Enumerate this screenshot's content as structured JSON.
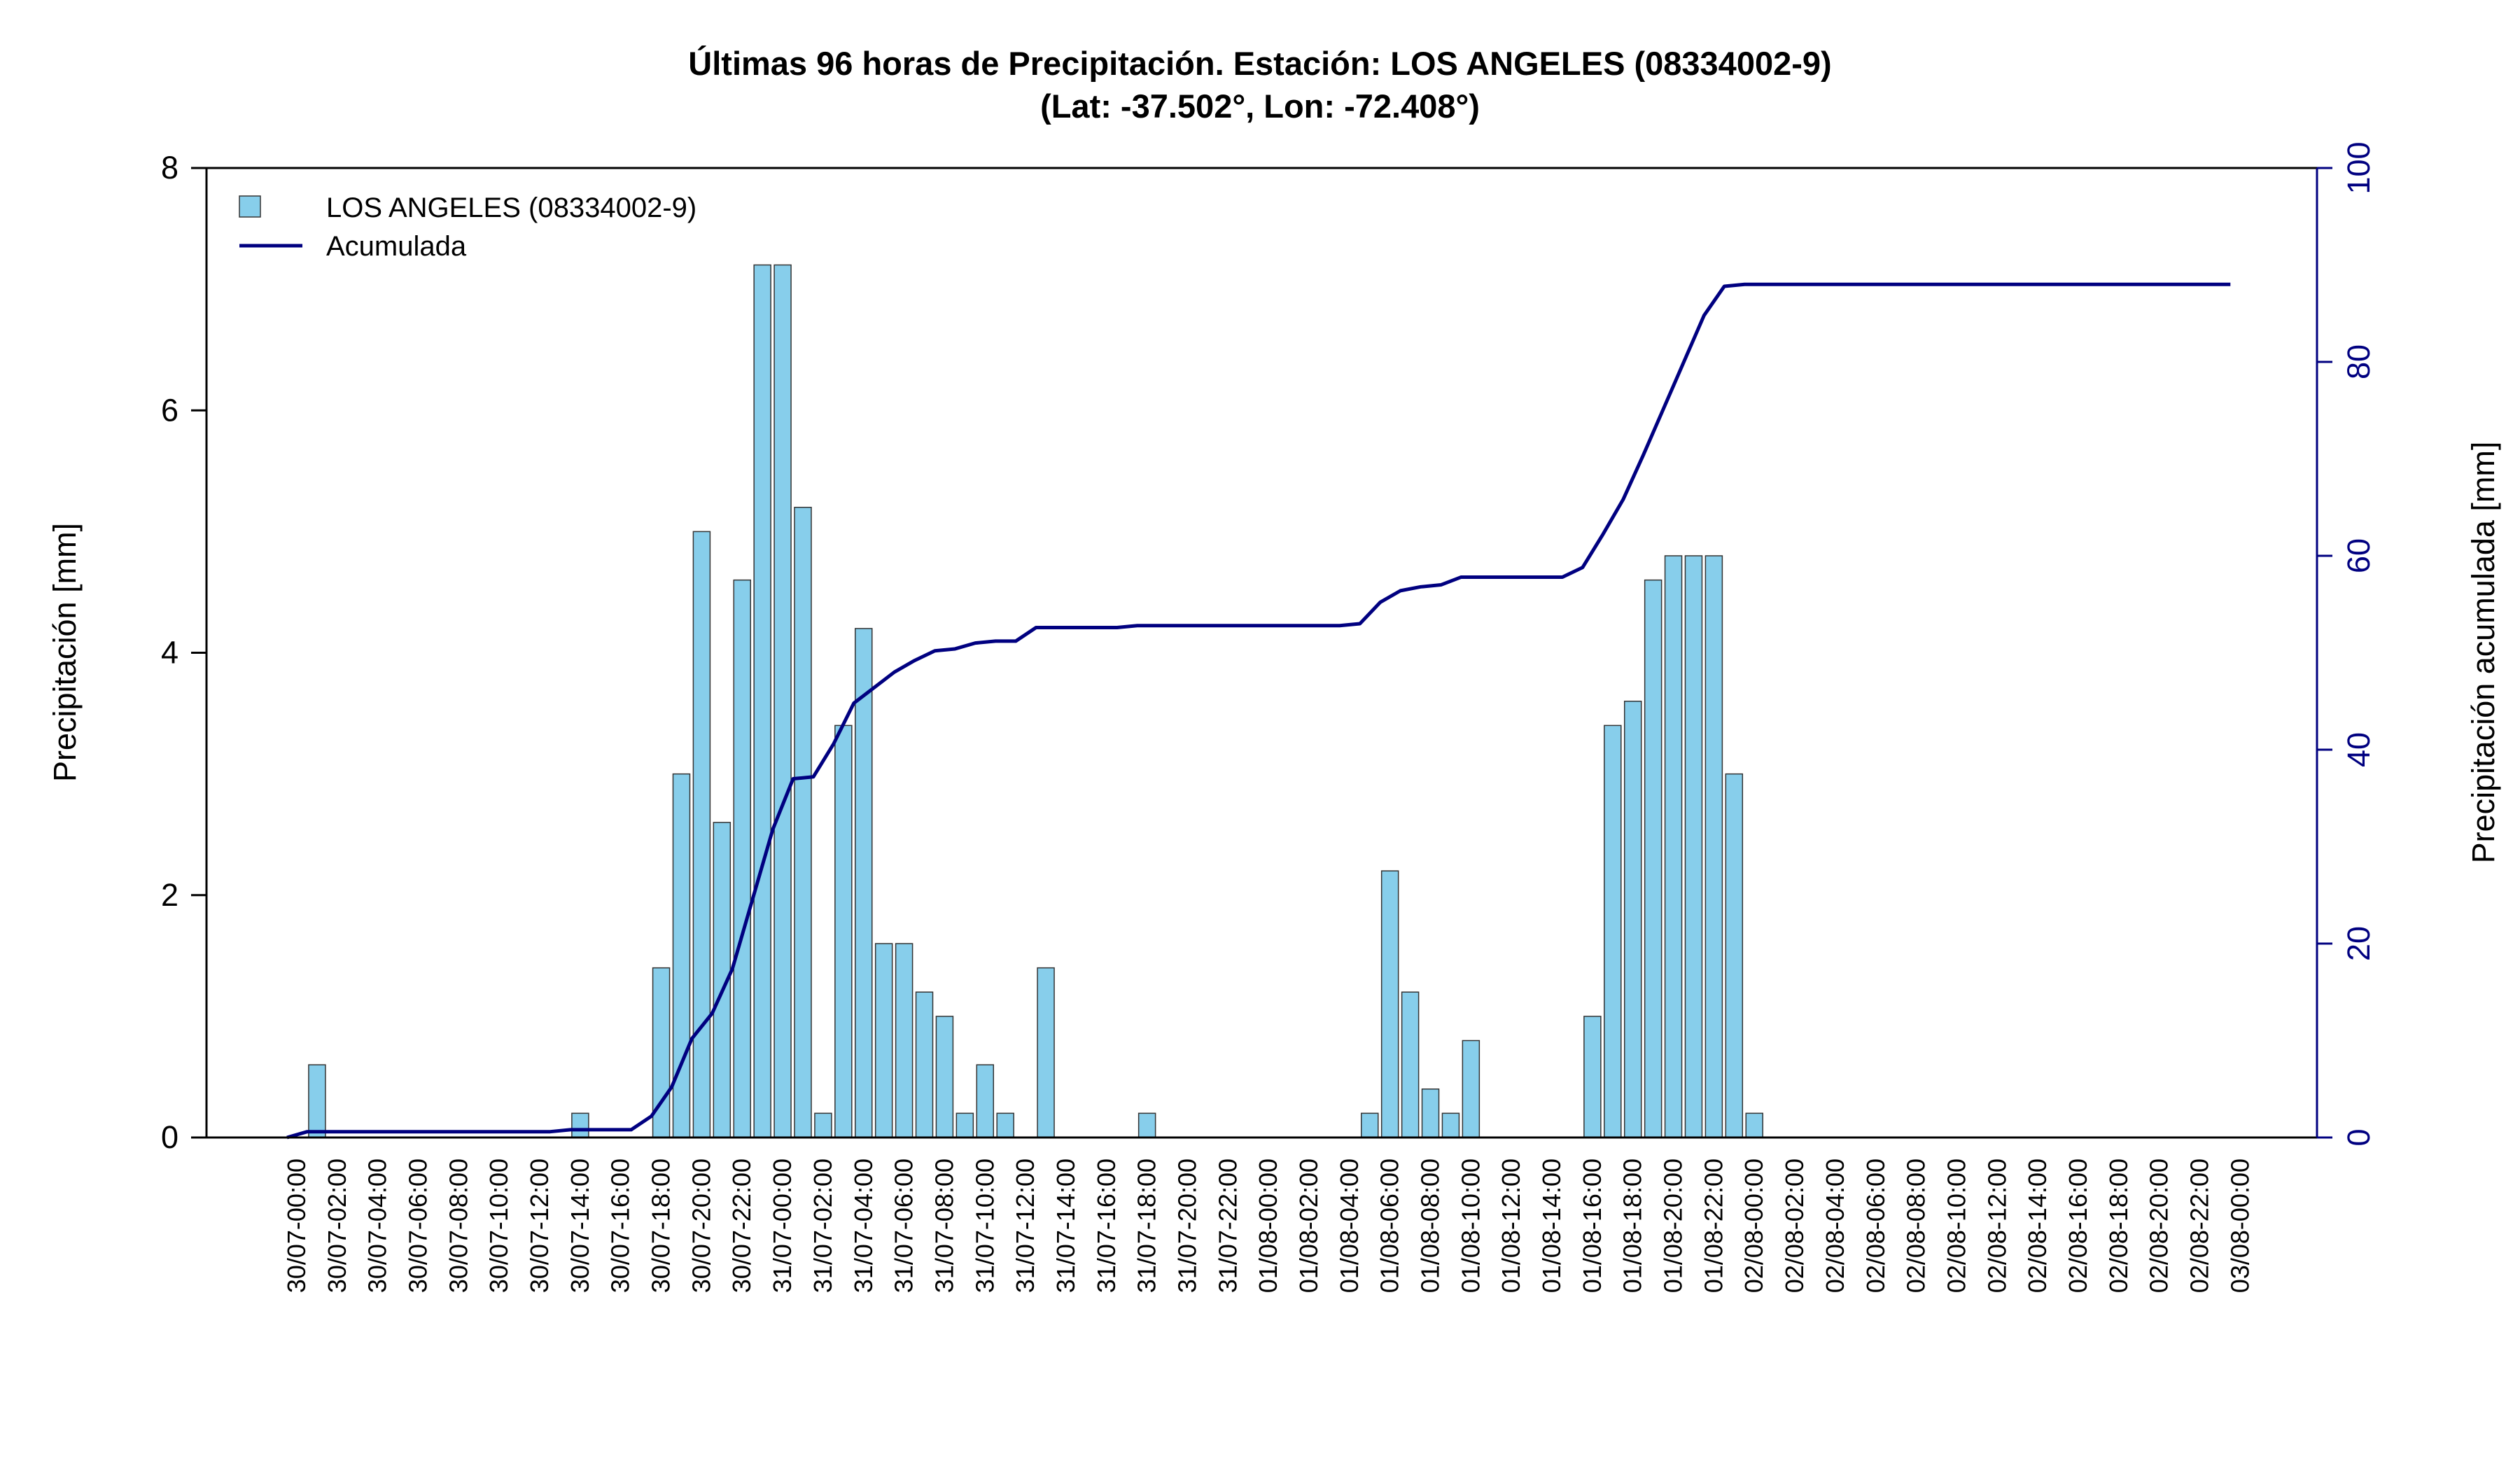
{
  "colors": {
    "bar_fill": "#87ceeb",
    "bar_stroke": "#333333",
    "line": "#000080",
    "axis": "#000000",
    "right_axis": "#000080"
  },
  "chart_data": {
    "type": "bar",
    "title": "Últimas 96 horas de Precipitación. Estación: LOS ANGELES (08334002-9)",
    "subtitle": "(Lat: -37.502°, Lon: -72.408°)",
    "ylabel": "Precipitación [mm]",
    "y2label": "Precipitación acumulada [mm]",
    "ylim": [
      0,
      8
    ],
    "y2lim": [
      0,
      100
    ],
    "yticks": [
      "0",
      "2",
      "4",
      "6",
      "8"
    ],
    "y2ticks": [
      "0",
      "20",
      "40",
      "60",
      "80",
      "100"
    ],
    "legend_placement": "top-left",
    "grid": false,
    "legend": [
      {
        "label": "LOS ANGELES (08334002-9)",
        "kind": "bar"
      },
      {
        "label": "Acumulada",
        "kind": "line"
      }
    ],
    "x_labels": [
      "30/07-00:00",
      "30/07-02:00",
      "30/07-04:00",
      "30/07-06:00",
      "30/07-08:00",
      "30/07-10:00",
      "30/07-12:00",
      "30/07-14:00",
      "30/07-16:00",
      "30/07-18:00",
      "30/07-20:00",
      "30/07-22:00",
      "31/07-00:00",
      "31/07-02:00",
      "31/07-04:00",
      "31/07-06:00",
      "31/07-08:00",
      "31/07-10:00",
      "31/07-12:00",
      "31/07-14:00",
      "31/07-16:00",
      "31/07-18:00",
      "31/07-20:00",
      "31/07-22:00",
      "01/08-00:00",
      "01/08-02:00",
      "01/08-04:00",
      "01/08-06:00",
      "01/08-08:00",
      "01/08-10:00",
      "01/08-12:00",
      "01/08-14:00",
      "01/08-16:00",
      "01/08-18:00",
      "01/08-20:00",
      "01/08-22:00",
      "02/08-00:00",
      "02/08-02:00",
      "02/08-04:00",
      "02/08-06:00",
      "02/08-08:00",
      "02/08-10:00",
      "02/08-12:00",
      "02/08-14:00",
      "02/08-16:00",
      "02/08-18:00",
      "02/08-20:00",
      "02/08-22:00",
      "03/08-00:00"
    ],
    "hourly_values": [
      0,
      0.6,
      0,
      0,
      0,
      0,
      0,
      0,
      0,
      0,
      0,
      0,
      0,
      0,
      0.2,
      0,
      0,
      0,
      1.4,
      3.0,
      5.0,
      2.6,
      4.6,
      7.2,
      7.2,
      5.2,
      0.2,
      3.4,
      4.2,
      1.6,
      1.6,
      1.2,
      1.0,
      0.2,
      0.6,
      0.2,
      0,
      1.4,
      0,
      0,
      0,
      0,
      0.2,
      0,
      0,
      0,
      0,
      0,
      0,
      0,
      0,
      0,
      0,
      0.2,
      2.2,
      1.2,
      0.4,
      0.2,
      0.8,
      0,
      0,
      0,
      0,
      0,
      1.0,
      3.4,
      3.6,
      4.6,
      4.8,
      4.8,
      4.8,
      3.0,
      0.2,
      0,
      0,
      0,
      0,
      0,
      0,
      0,
      0,
      0,
      0,
      0,
      0,
      0,
      0,
      0,
      0,
      0,
      0,
      0,
      0,
      0,
      0,
      0,
      0
    ],
    "cumulative_values": [
      0,
      0.6,
      0.6,
      0.6,
      0.6,
      0.6,
      0.6,
      0.6,
      0.6,
      0.6,
      0.6,
      0.6,
      0.6,
      0.6,
      0.8,
      0.8,
      0.8,
      0.8,
      2.2,
      5.2,
      10.2,
      12.8,
      17.4,
      24.6,
      31.8,
      37.0,
      37.2,
      40.6,
      44.8,
      46.4,
      48.0,
      49.2,
      50.2,
      50.4,
      51.0,
      51.2,
      51.2,
      52.6,
      52.6,
      52.6,
      52.6,
      52.6,
      52.8,
      52.8,
      52.8,
      52.8,
      52.8,
      52.8,
      52.8,
      52.8,
      52.8,
      52.8,
      52.8,
      53.0,
      55.2,
      56.4,
      56.8,
      57.0,
      57.8,
      57.8,
      57.8,
      57.8,
      57.8,
      57.8,
      58.8,
      62.2,
      65.8,
      70.4,
      75.2,
      80.0,
      84.8,
      87.8,
      88.0,
      88.0,
      88.0,
      88.0,
      88.0,
      88.0,
      88.0,
      88.0,
      88.0,
      88.0,
      88.0,
      88.0,
      88.0,
      88.0,
      88.0,
      88.0,
      88.0,
      88.0,
      88.0,
      88.0,
      88.0,
      88.0,
      88.0,
      88.0,
      88.0
    ]
  }
}
